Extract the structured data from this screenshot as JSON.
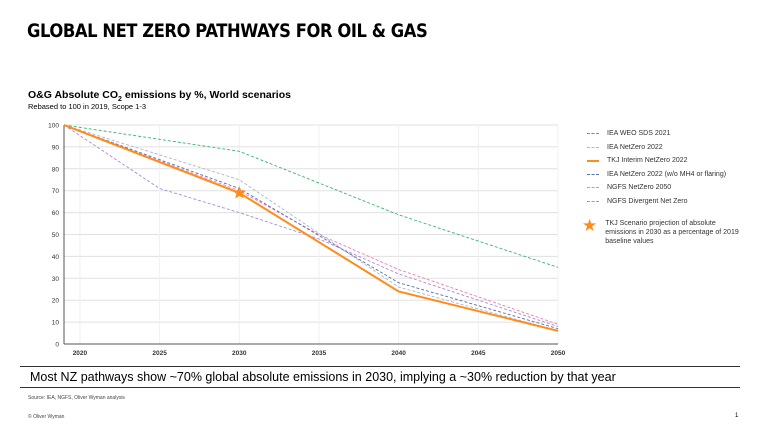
{
  "title": "GLOBAL NET ZERO PATHWAYS FOR OIL & GAS",
  "chart_title": {
    "prefix": "O&G Absolute CO",
    "subscript": "2",
    "suffix": " emissions by %, World scenarios"
  },
  "chart_subtitle": "Rebased to 100 in 2019, Scope 1-3",
  "headline": "Most NZ pathways show ~70% global absolute emissions in 2030, implying a ~30% reduction by that year",
  "source": "Source: IEA, NGFS, Oliver Wyman analysis",
  "copyright": "© Oliver Wyman",
  "page_number": "1",
  "chart_data": {
    "type": "line",
    "xlim": [
      2019,
      2050
    ],
    "ylim": [
      0,
      100
    ],
    "x_ticks": [
      "2020",
      "2025",
      "2030",
      "2035",
      "2040",
      "2045",
      "2050"
    ],
    "y_ticks": [
      "0",
      "10",
      "20",
      "30",
      "40",
      "50",
      "60",
      "70",
      "80",
      "90",
      "100"
    ],
    "grid": true,
    "legend_position": "right",
    "series": [
      {
        "name": "IEA WEO SDS 2021",
        "color": "#3cb371",
        "dash": true,
        "x": [
          2019,
          2030,
          2040,
          2050
        ],
        "y": [
          100,
          88,
          59,
          35
        ]
      },
      {
        "name": "IEA NetZero 2022",
        "color": "#a9b8cc",
        "dash": true,
        "x": [
          2019,
          2030,
          2040,
          2050
        ],
        "y": [
          100,
          75,
          26,
          6
        ]
      },
      {
        "name": "TKJ Interim NetZero  2022",
        "color": "#ff8c1a",
        "dash": false,
        "x": [
          2019,
          2030,
          2040,
          2050
        ],
        "y": [
          100,
          69,
          24,
          6
        ]
      },
      {
        "name": "IEA NetZero 2022 (w/o MH4 or flaring)",
        "color": "#5a6fa8",
        "dash": true,
        "x": [
          2019,
          2030,
          2040,
          2050
        ],
        "y": [
          100,
          71,
          28,
          7
        ]
      },
      {
        "name": "NGFS NetZero 2050",
        "color": "#f07fb0",
        "dash": true,
        "x": [
          2019,
          2030,
          2035,
          2040,
          2050
        ],
        "y": [
          100,
          70,
          50,
          34,
          9
        ]
      },
      {
        "name": "NGFS Divergent Net Zero",
        "color": "#a98ad6",
        "dash": true,
        "x": [
          2019,
          2025,
          2030,
          2035,
          2040,
          2050
        ],
        "y": [
          100,
          71,
          60,
          48,
          32,
          8
        ]
      }
    ],
    "annotation": {
      "marker": "star",
      "x": 2030,
      "y": 69,
      "color": "#ff8c1a",
      "text": "TKJ Scenario projection of absolute emissions in 2030 as a percentage of 2019 baseline values"
    }
  }
}
